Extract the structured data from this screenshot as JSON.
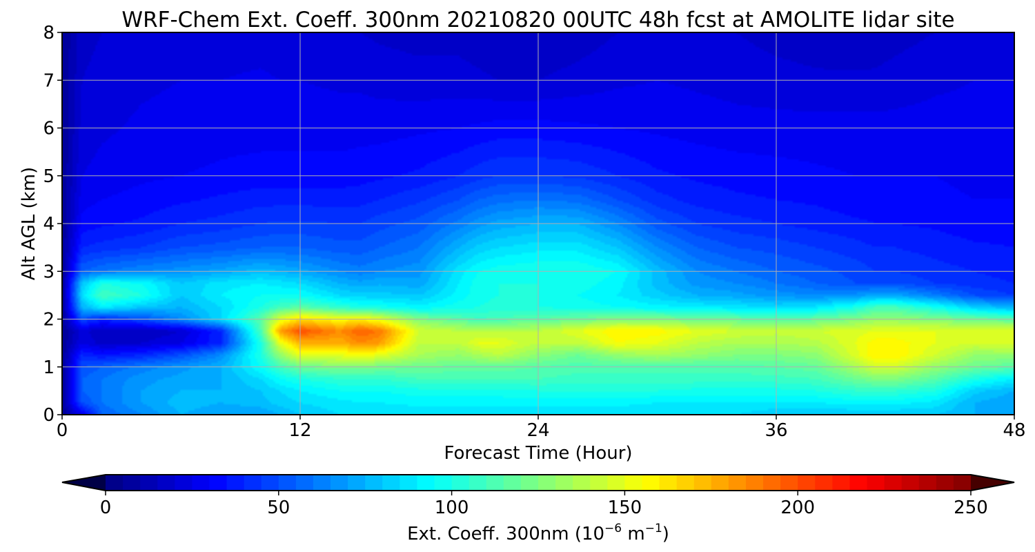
{
  "chart_data": {
    "type": "heatmap",
    "title": "WRF-Chem Ext. Coeff. 300nm  20210820 00UTC 48h fcst at AMOLITE lidar site",
    "xlabel": "Forecast Time (Hour)",
    "ylabel": "Alt AGL (km)",
    "xlim": [
      0,
      48
    ],
    "ylim": [
      0,
      8
    ],
    "x_ticks": [
      0,
      12,
      24,
      36,
      48
    ],
    "y_ticks": [
      0,
      1,
      2,
      3,
      4,
      5,
      6,
      7,
      8
    ],
    "grid": true,
    "colormap": "jet",
    "colorbar": {
      "label_main": "Ext. Coeff. 300nm  (10",
      "label_exp1": "−6",
      "label_mid": " m",
      "label_exp2": "−1",
      "label_end": ")",
      "range": [
        0,
        250
      ],
      "ticks": [
        0,
        50,
        100,
        150,
        200,
        250
      ],
      "extend": "both",
      "orientation": "horizontal"
    },
    "field": {
      "x_hours": [
        0,
        1,
        2,
        4,
        6,
        8,
        10,
        11,
        12,
        14,
        15,
        16,
        18,
        20,
        21,
        22,
        24,
        26,
        28,
        30,
        32,
        34,
        36,
        38,
        40,
        41,
        42,
        44,
        46,
        48
      ],
      "alt_km": [
        0,
        0.25,
        0.5,
        0.75,
        1.0,
        1.25,
        1.5,
        1.75,
        2.0,
        2.25,
        2.5,
        2.75,
        3.0,
        3.5,
        4.0,
        4.5,
        5.0,
        6.0,
        7.0,
        8.0
      ],
      "values": [
        [
          5,
          25,
          55,
          65,
          75,
          70,
          70,
          75,
          80,
          85,
          85,
          85,
          85,
          85,
          85,
          85,
          85,
          85,
          85,
          85,
          85,
          85,
          80,
          80,
          80,
          80,
          80,
          80,
          75,
          70
        ],
        [
          5,
          50,
          60,
          70,
          78,
          75,
          78,
          82,
          85,
          88,
          90,
          90,
          92,
          92,
          92,
          92,
          92,
          92,
          92,
          90,
          90,
          90,
          90,
          90,
          92,
          92,
          92,
          88,
          75,
          70
        ],
        [
          5,
          55,
          60,
          70,
          75,
          75,
          80,
          85,
          90,
          95,
          95,
          95,
          98,
          98,
          98,
          98,
          100,
          100,
          100,
          100,
          98,
          98,
          98,
          100,
          105,
          105,
          105,
          100,
          82,
          75
        ],
        [
          5,
          55,
          60,
          68,
          72,
          75,
          85,
          95,
          100,
          105,
          105,
          105,
          110,
          110,
          110,
          110,
          110,
          108,
          108,
          108,
          108,
          108,
          108,
          110,
          120,
          125,
          125,
          115,
          100,
          90
        ],
        [
          5,
          50,
          55,
          62,
          68,
          75,
          95,
          110,
          120,
          125,
          125,
          122,
          120,
          118,
          118,
          118,
          115,
          112,
          112,
          112,
          112,
          112,
          115,
          118,
          135,
          145,
          145,
          130,
          120,
          115
        ],
        [
          5,
          40,
          35,
          40,
          50,
          65,
          100,
          130,
          150,
          150,
          155,
          150,
          135,
          130,
          135,
          140,
          128,
          120,
          130,
          135,
          130,
          125,
          125,
          128,
          148,
          160,
          160,
          145,
          130,
          130
        ],
        [
          5,
          25,
          18,
          20,
          25,
          40,
          100,
          150,
          175,
          175,
          185,
          180,
          140,
          140,
          150,
          150,
          140,
          140,
          155,
          150,
          140,
          135,
          135,
          138,
          150,
          158,
          158,
          150,
          145,
          148
        ],
        [
          5,
          22,
          15,
          15,
          20,
          40,
          110,
          180,
          200,
          185,
          195,
          190,
          145,
          140,
          140,
          140,
          140,
          150,
          160,
          158,
          150,
          145,
          142,
          145,
          148,
          150,
          150,
          150,
          150,
          150
        ],
        [
          5,
          50,
          40,
          50,
          65,
          85,
          115,
          150,
          165,
          155,
          160,
          150,
          125,
          115,
          110,
          112,
          115,
          120,
          125,
          125,
          120,
          118,
          115,
          118,
          125,
          130,
          130,
          125,
          120,
          115
        ],
        [
          5,
          75,
          90,
          80,
          75,
          85,
          100,
          110,
          115,
          105,
          100,
          98,
          92,
          98,
          100,
          102,
          100,
          98,
          95,
          92,
          90,
          88,
          85,
          88,
          100,
          110,
          110,
          98,
          82,
          75
        ],
        [
          5,
          85,
          110,
          100,
          80,
          90,
          95,
          95,
          95,
          85,
          82,
          82,
          80,
          92,
          98,
          100,
          100,
          95,
          90,
          82,
          75,
          72,
          68,
          65,
          68,
          72,
          72,
          62,
          50,
          45
        ],
        [
          5,
          80,
          100,
          95,
          80,
          88,
          90,
          88,
          85,
          75,
          72,
          74,
          72,
          90,
          98,
          100,
          100,
          98,
          92,
          78,
          68,
          65,
          60,
          55,
          50,
          50,
          50,
          45,
          42,
          40
        ],
        [
          5,
          55,
          60,
          65,
          68,
          72,
          78,
          75,
          72,
          65,
          62,
          65,
          68,
          88,
          95,
          98,
          100,
          100,
          95,
          78,
          65,
          60,
          55,
          52,
          48,
          45,
          45,
          42,
          40,
          38
        ],
        [
          5,
          40,
          42,
          45,
          50,
          52,
          55,
          55,
          55,
          52,
          52,
          55,
          60,
          75,
          82,
          85,
          88,
          88,
          80,
          65,
          55,
          50,
          48,
          45,
          42,
          40,
          40,
          38,
          36,
          35
        ],
        [
          5,
          32,
          34,
          36,
          40,
          42,
          45,
          46,
          46,
          45,
          45,
          48,
          52,
          62,
          68,
          72,
          75,
          75,
          65,
          52,
          45,
          42,
          40,
          38,
          36,
          35,
          35,
          34,
          32,
          32
        ],
        [
          5,
          28,
          30,
          32,
          34,
          36,
          38,
          38,
          38,
          38,
          38,
          40,
          44,
          50,
          55,
          58,
          60,
          58,
          50,
          42,
          38,
          36,
          35,
          34,
          32,
          32,
          32,
          31,
          30,
          30
        ],
        [
          5,
          25,
          27,
          29,
          30,
          31,
          32,
          32,
          32,
          32,
          33,
          34,
          36,
          40,
          43,
          45,
          45,
          44,
          40,
          36,
          34,
          33,
          32,
          31,
          30,
          30,
          30,
          30,
          29,
          29
        ],
        [
          5,
          22,
          24,
          26,
          27,
          28,
          28,
          28,
          28,
          28,
          28,
          28,
          29,
          30,
          31,
          32,
          32,
          31,
          30,
          29,
          28,
          27,
          27,
          27,
          27,
          27,
          27,
          27,
          27,
          27
        ],
        [
          5,
          20,
          22,
          24,
          25,
          25,
          26,
          25,
          25,
          24,
          24,
          23,
          22,
          22,
          21,
          20,
          20,
          22,
          24,
          25,
          24,
          23,
          22,
          21,
          21,
          21,
          22,
          24,
          25,
          25
        ],
        [
          5,
          18,
          20,
          22,
          22,
          22,
          22,
          21,
          21,
          20,
          20,
          19,
          18,
          18,
          17,
          16,
          15,
          17,
          20,
          22,
          22,
          20,
          18,
          17,
          16,
          17,
          18,
          20,
          22,
          22
        ]
      ]
    }
  }
}
